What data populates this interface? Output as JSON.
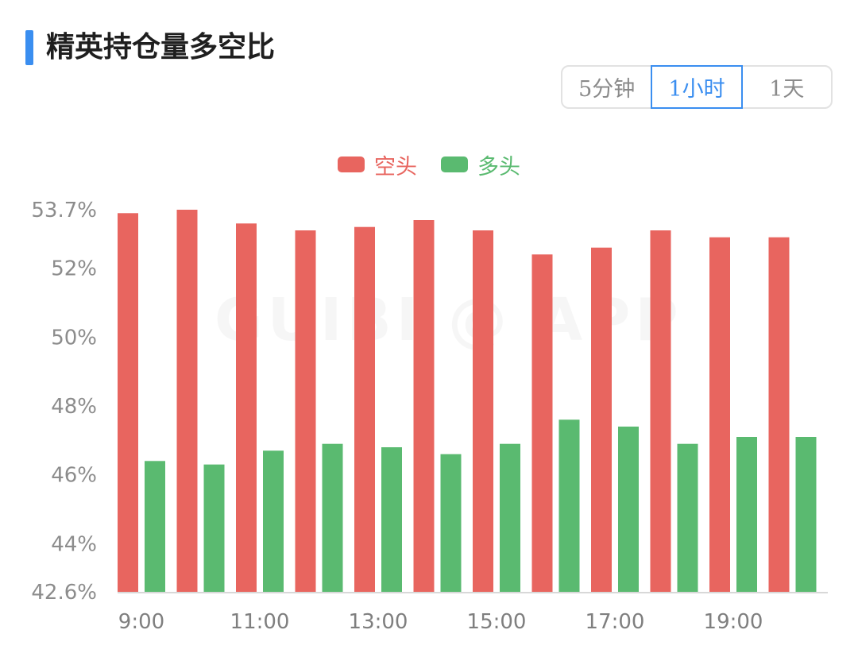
{
  "header": {
    "title": "精英持仓量多空比",
    "accent_color": "#3a8ef0"
  },
  "timeframe": {
    "options": [
      "5分钟",
      "1小时",
      "1天"
    ],
    "selected": "1小时"
  },
  "watermark": "GUIBI @ APP",
  "chart_data": {
    "type": "bar",
    "title": "",
    "xlabel": "",
    "ylabel": "",
    "ylim": [
      42.6,
      53.7
    ],
    "y_ticks": [
      "53.7%",
      "52%",
      "50%",
      "48%",
      "46%",
      "44%",
      "42.6%"
    ],
    "y_tick_values": [
      53.7,
      52,
      50,
      48,
      46,
      44,
      42.6
    ],
    "categories": [
      "9:00",
      "10:00",
      "11:00",
      "12:00",
      "13:00",
      "14:00",
      "15:00",
      "16:00",
      "17:00",
      "18:00",
      "19:00",
      "20:00"
    ],
    "x_tick_labels": [
      "9:00",
      "",
      "11:00",
      "",
      "13:00",
      "",
      "15:00",
      "",
      "17:00",
      "",
      "19:00",
      ""
    ],
    "legend_position": "top-center",
    "grid": false,
    "series": [
      {
        "name": "空头",
        "color": "#e8655f",
        "values": [
          53.6,
          53.7,
          53.3,
          53.1,
          53.2,
          53.4,
          53.1,
          52.4,
          52.6,
          53.1,
          52.9,
          52.9
        ]
      },
      {
        "name": "多头",
        "color": "#5aba70",
        "values": [
          46.4,
          46.3,
          46.7,
          46.9,
          46.8,
          46.6,
          46.9,
          47.6,
          47.4,
          46.9,
          47.1,
          47.1
        ]
      }
    ]
  }
}
